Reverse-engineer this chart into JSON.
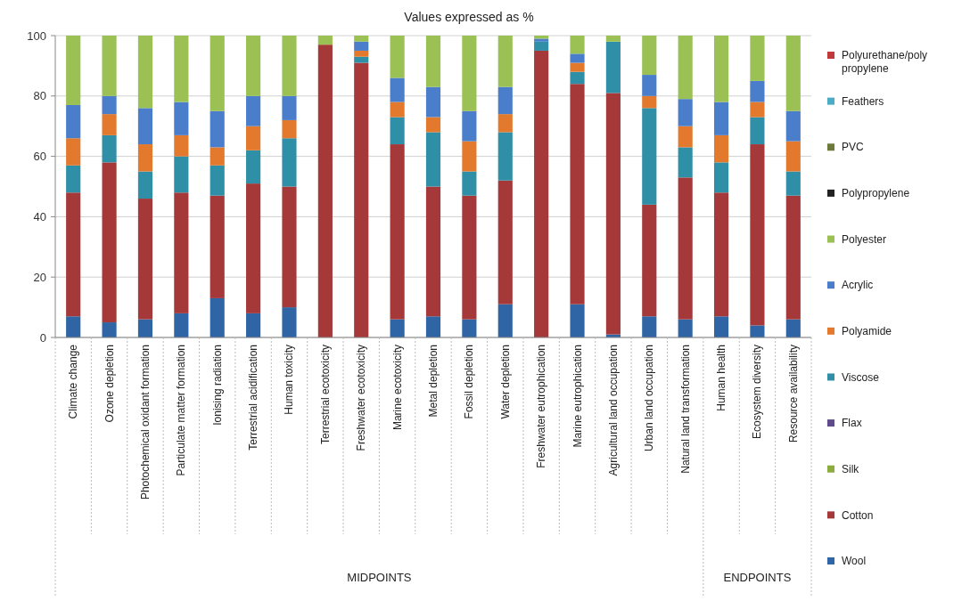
{
  "chart_data": {
    "type": "bar",
    "title": "Values expressed as %",
    "stacked": true,
    "grid": "y",
    "legend": "right",
    "categories": [
      "Climate change",
      "Ozone depletion",
      "Photochemical oxidant formation",
      "Particulate matter formation",
      "Ionising radiation",
      "Terrestrial acidification",
      "Human toxicity",
      "Terrestrial ecotoxicity",
      "Freshwater ecotoxicity",
      "Marine ecotoxicity",
      "Metal depletion",
      "Fossil depletion",
      "Water depletion",
      "Freshwater eutrophication",
      "Marine eutrophication",
      "Agricultural land occupation",
      "Urban land occupation",
      "Natural land transformation",
      "Human health",
      "Ecosystem diversity",
      "Resource availability"
    ],
    "ylim": [
      0,
      100
    ],
    "yticks": [
      0,
      20,
      40,
      60,
      80,
      100
    ],
    "annotations": [
      "MIDPOINTS",
      "ENDPOINTS"
    ],
    "series": [
      {
        "name": "Wool",
        "color": "#2f65a5",
        "values": [
          7,
          5,
          6,
          8,
          13,
          8,
          10,
          0,
          0,
          6,
          7,
          6,
          11,
          0,
          11,
          1,
          7,
          6,
          7,
          4,
          6
        ]
      },
      {
        "name": "Cotton",
        "color": "#a5393a",
        "values": [
          41,
          53,
          40,
          40,
          34,
          43,
          40,
          97,
          91,
          58,
          43,
          41,
          41,
          95,
          73,
          80,
          37,
          47,
          41,
          60,
          41
        ]
      },
      {
        "name": "Silk",
        "color": "#8cac3e",
        "values": [
          0,
          0,
          0,
          0,
          0,
          0,
          0,
          0,
          0,
          0,
          0,
          0,
          0,
          0,
          0,
          0,
          0,
          0,
          0,
          0,
          0
        ]
      },
      {
        "name": "Flax",
        "color": "#5f4b8b",
        "values": [
          0,
          0,
          0,
          0,
          0,
          0,
          0,
          0,
          0,
          0,
          0,
          0,
          0,
          0,
          0,
          0,
          0,
          0,
          0,
          0,
          0
        ]
      },
      {
        "name": "Viscose",
        "color": "#2f8fa6",
        "values": [
          9,
          9,
          9,
          12,
          10,
          11,
          16,
          0,
          2,
          9,
          18,
          8,
          16,
          3,
          4,
          17,
          32,
          10,
          10,
          9,
          8
        ]
      },
      {
        "name": "Polyamide",
        "color": "#e3792c",
        "values": [
          9,
          7,
          9,
          7,
          6,
          8,
          6,
          0,
          2,
          5,
          5,
          10,
          6,
          0,
          3,
          0,
          4,
          7,
          9,
          5,
          10
        ]
      },
      {
        "name": "Acrylic",
        "color": "#4a7ecb",
        "values": [
          11,
          6,
          12,
          11,
          12,
          10,
          8,
          0,
          3,
          8,
          10,
          10,
          9,
          1,
          3,
          0,
          7,
          9,
          11,
          7,
          10
        ]
      },
      {
        "name": "Polyester",
        "color": "#9bc053",
        "values": [
          23,
          20,
          24,
          22,
          25,
          20,
          20,
          3,
          2,
          14,
          17,
          25,
          17,
          1,
          6,
          2,
          13,
          21,
          22,
          15,
          25
        ]
      },
      {
        "name": "Polypropylene",
        "color": "#222222",
        "values": [
          0,
          0,
          0,
          0,
          0,
          0,
          0,
          0,
          0,
          0,
          0,
          0,
          0,
          0,
          0,
          0,
          0,
          0,
          0,
          0,
          0
        ]
      },
      {
        "name": "PVC",
        "color": "#6d7a3a",
        "values": [
          0,
          0,
          0,
          0,
          0,
          0,
          0,
          0,
          0,
          0,
          0,
          0,
          0,
          0,
          0,
          0,
          0,
          0,
          0,
          0,
          0
        ]
      },
      {
        "name": "Feathers",
        "color": "#4bacc6",
        "values": [
          0,
          0,
          0,
          0,
          0,
          0,
          0,
          0,
          0,
          0,
          0,
          0,
          0,
          0,
          0,
          0,
          0,
          0,
          0,
          0,
          0
        ]
      },
      {
        "name": "Polyurethane/poly propylene",
        "color": "#c0393b",
        "values": [
          0,
          0,
          0,
          0,
          0,
          0,
          0,
          0,
          0,
          0,
          0,
          0,
          0,
          0,
          0,
          0,
          0,
          0,
          0,
          0,
          0
        ]
      }
    ]
  }
}
